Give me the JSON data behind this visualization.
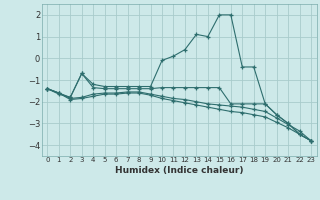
{
  "xlabel": "Humidex (Indice chaleur)",
  "ylabel": "",
  "background_color": "#cde9e9",
  "grid_color": "#a8cccc",
  "line_color": "#2e6e6e",
  "xlim": [
    -0.5,
    23.5
  ],
  "ylim": [
    -4.5,
    2.5
  ],
  "yticks": [
    -4,
    -3,
    -2,
    -1,
    0,
    1,
    2
  ],
  "xticks": [
    0,
    1,
    2,
    3,
    4,
    5,
    6,
    7,
    8,
    9,
    10,
    11,
    12,
    13,
    14,
    15,
    16,
    17,
    18,
    19,
    20,
    21,
    22,
    23
  ],
  "line1_x": [
    0,
    1,
    2,
    3,
    4,
    5,
    6,
    7,
    8,
    9,
    10,
    11,
    12,
    13,
    14,
    15,
    16,
    17,
    18,
    19,
    20,
    21,
    22,
    23
  ],
  "line1_y": [
    -1.4,
    -1.6,
    -1.8,
    -0.7,
    -1.2,
    -1.3,
    -1.3,
    -1.3,
    -1.3,
    -1.3,
    -0.1,
    0.1,
    0.4,
    1.1,
    1.0,
    2.0,
    2.0,
    -0.4,
    -0.4,
    -2.1,
    -2.6,
    -3.0,
    -3.5,
    -3.8
  ],
  "line2_x": [
    0,
    1,
    2,
    3,
    4,
    5,
    6,
    7,
    8,
    9,
    10,
    11,
    12,
    13,
    14,
    15,
    16,
    17,
    18,
    19,
    20,
    21,
    22,
    23
  ],
  "line2_y": [
    -1.4,
    -1.65,
    -1.8,
    -0.7,
    -1.35,
    -1.4,
    -1.4,
    -1.4,
    -1.4,
    -1.4,
    -1.35,
    -1.35,
    -1.35,
    -1.35,
    -1.35,
    -1.35,
    -2.1,
    -2.1,
    -2.1,
    -2.1,
    -2.6,
    -3.0,
    -3.5,
    -3.8
  ],
  "line3_x": [
    0,
    1,
    2,
    3,
    4,
    5,
    6,
    7,
    8,
    9,
    10,
    11,
    12,
    13,
    14,
    15,
    16,
    17,
    18,
    19,
    20,
    21,
    22,
    23
  ],
  "line3_y": [
    -1.4,
    -1.6,
    -1.85,
    -1.8,
    -1.65,
    -1.6,
    -1.6,
    -1.55,
    -1.55,
    -1.65,
    -1.75,
    -1.85,
    -1.9,
    -2.0,
    -2.1,
    -2.15,
    -2.2,
    -2.25,
    -2.35,
    -2.45,
    -2.75,
    -3.05,
    -3.35,
    -3.8
  ],
  "line4_x": [
    0,
    1,
    2,
    3,
    4,
    5,
    6,
    7,
    8,
    9,
    10,
    11,
    12,
    13,
    14,
    15,
    16,
    17,
    18,
    19,
    20,
    21,
    22,
    23
  ],
  "line4_y": [
    -1.4,
    -1.6,
    -1.9,
    -1.85,
    -1.75,
    -1.65,
    -1.65,
    -1.6,
    -1.6,
    -1.7,
    -1.85,
    -1.95,
    -2.05,
    -2.15,
    -2.25,
    -2.35,
    -2.45,
    -2.5,
    -2.6,
    -2.7,
    -2.95,
    -3.2,
    -3.5,
    -3.8
  ]
}
